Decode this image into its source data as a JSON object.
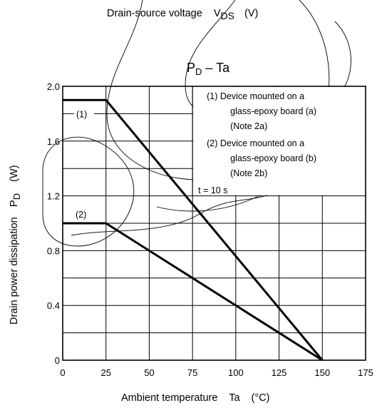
{
  "top_label": {
    "prefix": "Drain-source voltage",
    "symbol": "V",
    "subscript": "DS",
    "unit": "(V)"
  },
  "chart_data": {
    "type": "line",
    "title": {
      "symbol": "P",
      "subscript": "D",
      "rest": " – Ta"
    },
    "xlabel": {
      "text": "Ambient temperature",
      "symbol": "Ta",
      "unit": "(°C)"
    },
    "ylabel": {
      "text": "Drain power dissipation",
      "symbol": "P",
      "subscript": "D",
      "unit": "(W)"
    },
    "xlim": [
      0,
      175
    ],
    "ylim": [
      0,
      2.0
    ],
    "x_ticks": [
      0,
      25,
      50,
      75,
      100,
      125,
      150,
      175
    ],
    "x_tick_labels": [
      "0",
      "25",
      "50",
      "75",
      "100",
      "125",
      "150",
      "175"
    ],
    "y_ticks": [
      0,
      0.4,
      0.8,
      1.2,
      1.6,
      2.0
    ],
    "y_tick_labels": [
      "0",
      "0.4",
      "0.8",
      "1.2",
      "1.6",
      "2.0"
    ],
    "grid": true,
    "series": [
      {
        "name": "(1)",
        "points": [
          [
            0,
            1.9
          ],
          [
            25,
            1.9
          ],
          [
            150,
            0
          ]
        ]
      },
      {
        "name": "(2)",
        "points": [
          [
            0,
            1.0
          ],
          [
            25,
            1.0
          ],
          [
            150,
            0
          ]
        ]
      }
    ],
    "legend": {
      "placement": "top-right",
      "lines": [
        "(1)  Device mounted on a",
        "glass-epoxy board (a)",
        "(Note 2a)",
        "(2)  Device mounted on a",
        "glass-epoxy board (b)",
        "(Note 2b)",
        "t = 10 s"
      ]
    }
  }
}
